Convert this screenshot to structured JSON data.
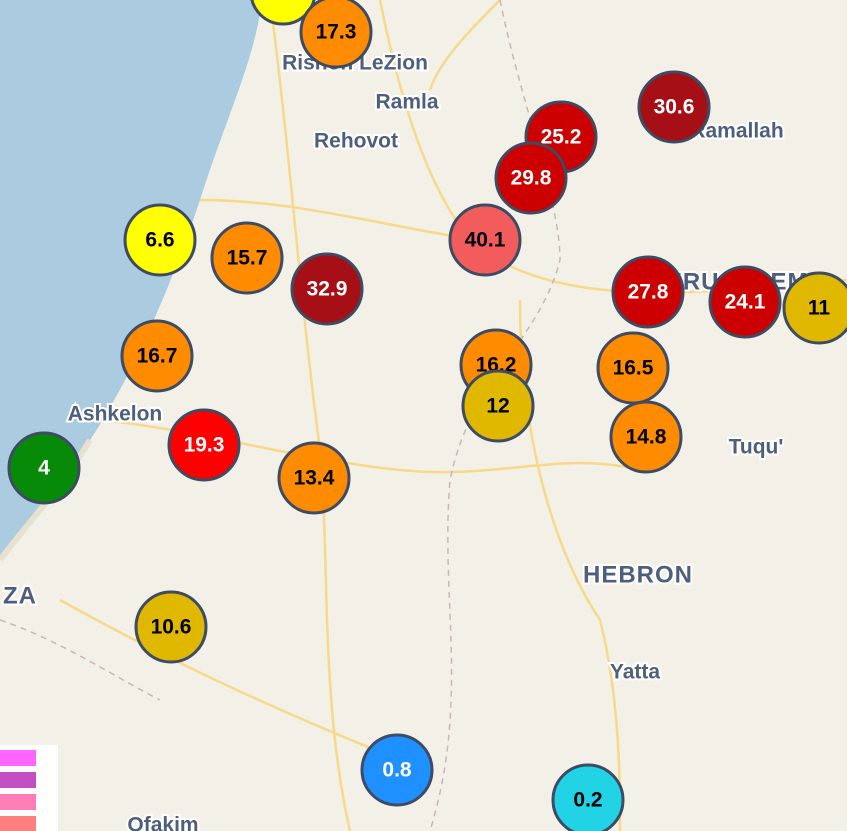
{
  "places": [
    {
      "name": "Rishon LeZion"
    },
    {
      "name": "Ramla"
    },
    {
      "name": "Rehovot"
    },
    {
      "name": "Ramallah"
    },
    {
      "name": "JERUSALEM"
    },
    {
      "name": "Ashkelon"
    },
    {
      "name": "Tuqu'"
    },
    {
      "name": "HEBRON"
    },
    {
      "name": "Yatta"
    },
    {
      "name": "ZA"
    },
    {
      "name": "Ofakim"
    }
  ],
  "markers": [
    {
      "value": 17.3,
      "color": "#ff8c00",
      "text_color": "#000000"
    },
    {
      "value": 30.6,
      "color": "#a50f15",
      "text_color": "#ffffff"
    },
    {
      "value": 25.2,
      "color": "#cc0000",
      "text_color": "#ffffff"
    },
    {
      "value": 29.8,
      "color": "#cc0000",
      "text_color": "#ffffff"
    },
    {
      "value": 6.6,
      "color": "#ffff00",
      "text_color": "#000000"
    },
    {
      "value": 15.7,
      "color": "#ff8c00",
      "text_color": "#000000"
    },
    {
      "value": 32.9,
      "color": "#a50f15",
      "text_color": "#ffffff"
    },
    {
      "value": 40.1,
      "color": "#f25c5c",
      "text_color": "#000000"
    },
    {
      "value": 27.8,
      "color": "#cc0000",
      "text_color": "#ffffff"
    },
    {
      "value": 24.1,
      "color": "#cc0000",
      "text_color": "#ffffff"
    },
    {
      "value": 11,
      "color": "#e0b800",
      "text_color": "#000000"
    },
    {
      "value": 16.7,
      "color": "#ff8c00",
      "text_color": "#000000"
    },
    {
      "value": 16.2,
      "color": "#ff8c00",
      "text_color": "#000000"
    },
    {
      "value": 12,
      "color": "#e0b800",
      "text_color": "#000000"
    },
    {
      "value": 16.5,
      "color": "#ff8c00",
      "text_color": "#000000"
    },
    {
      "value": 14.8,
      "color": "#ff8c00",
      "text_color": "#000000"
    },
    {
      "value": 4,
      "color": "#078a07",
      "text_color": "#ffffff"
    },
    {
      "value": 19.3,
      "color": "#ff0000",
      "text_color": "#ffffff"
    },
    {
      "value": 13.4,
      "color": "#ff8c00",
      "text_color": "#000000"
    },
    {
      "value": 10.6,
      "color": "#e0b800",
      "text_color": "#000000"
    },
    {
      "value": 0.8,
      "color": "#1e90ff",
      "text_color": "#ffffff"
    },
    {
      "value": 0.2,
      "color": "#22d3e6",
      "text_color": "#000000"
    }
  ]
}
